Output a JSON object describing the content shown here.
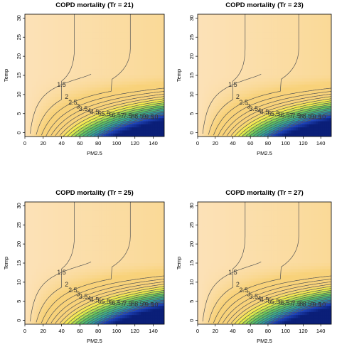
{
  "chart_data": [
    {
      "type": "contour",
      "title": "COPD mortality (Tr = 21)",
      "xlabel": "PM2.5",
      "ylabel": "Temp",
      "xlim": [
        0,
        152
      ],
      "ylim": [
        -1,
        31
      ],
      "xticks": [
        0,
        20,
        40,
        60,
        80,
        100,
        120,
        140
      ],
      "yticks": [
        0,
        5,
        10,
        15,
        20,
        25,
        30
      ],
      "contour_levels": [
        "1.5",
        "2",
        "2.5",
        "3",
        "3.5",
        "4",
        "4.5",
        "5",
        "5.5",
        "6",
        "6.5",
        "7",
        "7.5",
        "8",
        "8.5",
        "9",
        "9.5",
        "10"
      ],
      "grid": false,
      "legend": "none"
    },
    {
      "type": "contour",
      "title": "COPD mortality (Tr = 23)",
      "xlabel": "PM2.5",
      "ylabel": "Temp",
      "xlim": [
        0,
        152
      ],
      "ylim": [
        -1,
        31
      ],
      "xticks": [
        0,
        20,
        40,
        60,
        80,
        100,
        120,
        140
      ],
      "yticks": [
        0,
        5,
        10,
        15,
        20,
        25,
        30
      ],
      "contour_levels": [
        "1.5",
        "2",
        "2.5",
        "3",
        "3.5",
        "4",
        "4.5",
        "5",
        "5.5",
        "6",
        "6.5",
        "7",
        "7.5",
        "8",
        "8.5",
        "9",
        "9.5",
        "10"
      ],
      "grid": false,
      "legend": "none"
    },
    {
      "type": "contour",
      "title": "COPD mortality (Tr = 25)",
      "xlabel": "PM2.5",
      "ylabel": "Temp",
      "xlim": [
        0,
        152
      ],
      "ylim": [
        -1,
        31
      ],
      "xticks": [
        0,
        20,
        40,
        60,
        80,
        100,
        120,
        140
      ],
      "yticks": [
        0,
        5,
        10,
        15,
        20,
        25,
        30
      ],
      "contour_levels": [
        "1.5",
        "2",
        "2.5",
        "3",
        "3.5",
        "4",
        "4.5",
        "5",
        "5.5",
        "6",
        "6.5",
        "7",
        "7.5",
        "8",
        "8.5",
        "9",
        "9.5",
        "10"
      ],
      "grid": false,
      "legend": "none"
    },
    {
      "type": "contour",
      "title": "COPD mortality (Tr = 27)",
      "xlabel": "PM2.5",
      "ylabel": "Temp",
      "xlim": [
        0,
        152
      ],
      "ylim": [
        -1,
        31
      ],
      "xticks": [
        0,
        20,
        40,
        60,
        80,
        100,
        120,
        140
      ],
      "yticks": [
        0,
        5,
        10,
        15,
        20,
        25,
        30
      ],
      "contour_levels": [
        "1.5",
        "2",
        "2.5",
        "3",
        "3.5",
        "4",
        "4.5",
        "5",
        "5.5",
        "6",
        "6.5",
        "7",
        "7.5",
        "8",
        "8.5",
        "9",
        "9.5",
        "10"
      ],
      "grid": false,
      "legend": "none"
    }
  ],
  "colors": {
    "low": "#fde4c2",
    "mid": "#f8d27a",
    "yellow": "#f3ef4a",
    "green": "#62c85a",
    "teal": "#2aa6a0",
    "blue": "#2148c0",
    "navy": "#0b1f78",
    "contour_line": "#555555"
  }
}
